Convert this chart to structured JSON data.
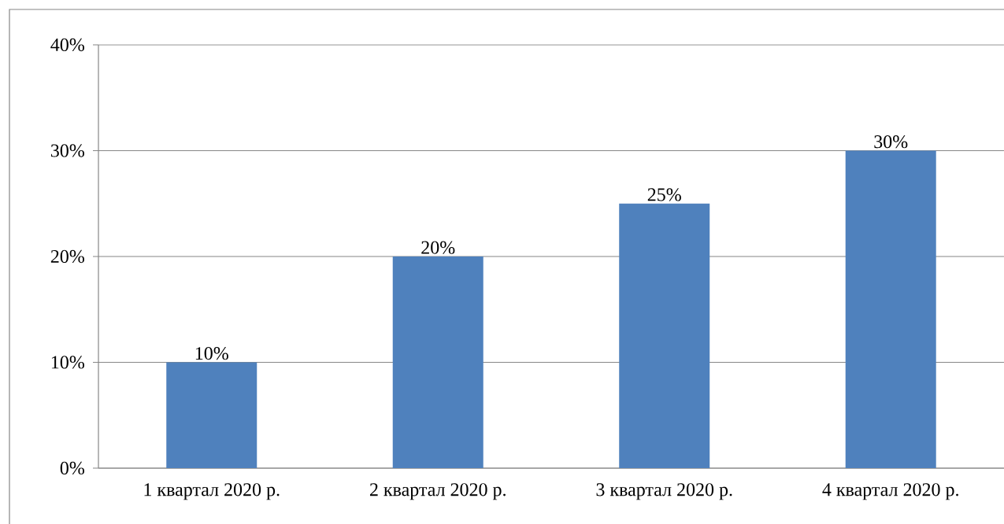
{
  "chart_data": {
    "type": "bar",
    "categories": [
      "1 квартал 2020 р.",
      "2 квартал 2020 р.",
      "3 квартал 2020 р.",
      "4 квартал 2020 р."
    ],
    "values": [
      10,
      20,
      25,
      30
    ],
    "value_labels": [
      "10%",
      "20%",
      "25%",
      "30%"
    ],
    "color": "#4f81bd",
    "ylim": [
      0,
      40
    ],
    "yticks": [
      {
        "value": 0,
        "label": "0%"
      },
      {
        "value": 10,
        "label": "10%"
      },
      {
        "value": 20,
        "label": "20%"
      },
      {
        "value": 30,
        "label": "30%"
      },
      {
        "value": 40,
        "label": "40%"
      }
    ],
    "grid": "y"
  }
}
